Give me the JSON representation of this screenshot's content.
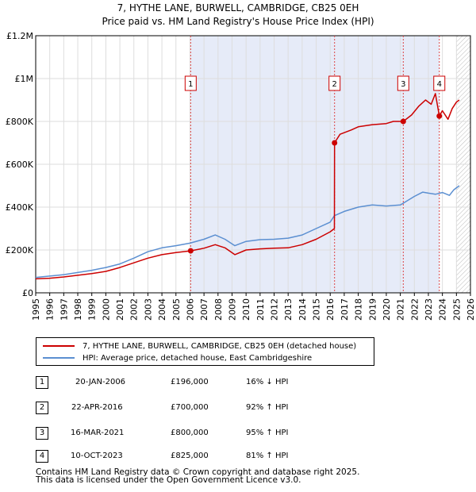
{
  "header": {
    "title": "7, HYTHE LANE, BURWELL, CAMBRIDGE, CB25 0EH",
    "subtitle": "Price paid vs. HM Land Registry's House Price Index (HPI)"
  },
  "chart_data": {
    "type": "line",
    "title": "7, HYTHE LANE, BURWELL, CAMBRIDGE, CB25 0EH",
    "subtitle": "Price paid vs. HM Land Registry's House Price Index (HPI)",
    "xlabel": "",
    "ylabel": "",
    "xlim": [
      1995,
      2026
    ],
    "ylim": [
      0,
      1200000
    ],
    "y_ticks": [
      {
        "value": 0,
        "label": "£0"
      },
      {
        "value": 200000,
        "label": "£200K"
      },
      {
        "value": 400000,
        "label": "£400K"
      },
      {
        "value": 600000,
        "label": "£600K"
      },
      {
        "value": 800000,
        "label": "£800K"
      },
      {
        "value": 1000000,
        "label": "£1M"
      },
      {
        "value": 1200000,
        "label": "£1.2M"
      }
    ],
    "x_ticks": [
      "1995",
      "1996",
      "1997",
      "1998",
      "1999",
      "2000",
      "2001",
      "2002",
      "2003",
      "2004",
      "2005",
      "2006",
      "2007",
      "2008",
      "2009",
      "2010",
      "2011",
      "2012",
      "2013",
      "2014",
      "2015",
      "2016",
      "2017",
      "2018",
      "2019",
      "2020",
      "2021",
      "2022",
      "2023",
      "2024",
      "2025",
      "2026"
    ],
    "shaded_span": [
      2006.05,
      2023.78
    ],
    "hatched_from": 2025.0,
    "grid": true,
    "series": [
      {
        "name": "7, HYTHE LANE, BURWELL, CAMBRIDGE, CB25 0EH (detached house)",
        "color": "#cc0000",
        "x": [
          1995.0,
          1996.0,
          1997.0,
          1998.0,
          1999.0,
          2000.0,
          2001.0,
          2002.0,
          2003.0,
          2004.0,
          2005.0,
          2006.05,
          2007.0,
          2007.8,
          2008.5,
          2009.2,
          2010.0,
          2011.0,
          2012.0,
          2013.0,
          2014.0,
          2015.0,
          2016.0,
          2016.3,
          2016.31,
          2016.7,
          2017.5,
          2018.0,
          2019.0,
          2020.0,
          2020.5,
          2021.21,
          2021.8,
          2022.3,
          2022.8,
          2023.2,
          2023.5,
          2023.78,
          2024.0,
          2024.4,
          2024.7,
          2025.0,
          2025.2
        ],
        "values": [
          65000,
          68000,
          74000,
          82000,
          90000,
          100000,
          118000,
          140000,
          162000,
          178000,
          188000,
          196000,
          208000,
          225000,
          210000,
          178000,
          200000,
          205000,
          208000,
          210000,
          225000,
          250000,
          285000,
          300000,
          700000,
          740000,
          760000,
          775000,
          785000,
          790000,
          800000,
          800000,
          830000,
          870000,
          900000,
          880000,
          930000,
          825000,
          850000,
          810000,
          860000,
          890000,
          900000
        ]
      },
      {
        "name": "HPI: Average price, detached house, East Cambridgeshire",
        "color": "#5b8fd1",
        "x": [
          1995.0,
          1996.0,
          1997.0,
          1998.0,
          1999.0,
          2000.0,
          2001.0,
          2002.0,
          2003.0,
          2004.0,
          2005.0,
          2006.0,
          2007.0,
          2007.8,
          2008.5,
          2009.2,
          2010.0,
          2011.0,
          2012.0,
          2013.0,
          2014.0,
          2015.0,
          2016.0,
          2016.3,
          2017.0,
          2018.0,
          2019.0,
          2020.0,
          2021.0,
          2021.5,
          2022.0,
          2022.6,
          2023.0,
          2023.5,
          2024.0,
          2024.5,
          2024.8,
          2025.2
        ],
        "values": [
          72000,
          78000,
          85000,
          95000,
          105000,
          118000,
          135000,
          162000,
          192000,
          210000,
          220000,
          232000,
          250000,
          270000,
          250000,
          220000,
          240000,
          248000,
          250000,
          255000,
          270000,
          300000,
          330000,
          360000,
          380000,
          400000,
          410000,
          405000,
          410000,
          430000,
          450000,
          470000,
          465000,
          460000,
          468000,
          455000,
          480000,
          500000
        ]
      }
    ],
    "sales": [
      {
        "label": "1",
        "x": 2006.05,
        "value": 196000
      },
      {
        "label": "2",
        "x": 2016.31,
        "value": 700000
      },
      {
        "label": "3",
        "x": 2021.21,
        "value": 800000
      },
      {
        "label": "4",
        "x": 2023.78,
        "value": 825000
      }
    ]
  },
  "legend": {
    "items": [
      {
        "label": "7, HYTHE LANE, BURWELL, CAMBRIDGE, CB25 0EH (detached house)",
        "color": "#cc0000"
      },
      {
        "label": "HPI: Average price, detached house, East Cambridgeshire",
        "color": "#5b8fd1"
      }
    ]
  },
  "transactions": [
    {
      "num": "1",
      "date": "20-JAN-2006",
      "price": "£196,000",
      "hpi": "16% ↓ HPI"
    },
    {
      "num": "2",
      "date": "22-APR-2016",
      "price": "£700,000",
      "hpi": "92% ↑ HPI"
    },
    {
      "num": "3",
      "date": "16-MAR-2021",
      "price": "£800,000",
      "hpi": "95% ↑ HPI"
    },
    {
      "num": "4",
      "date": "10-OCT-2023",
      "price": "£825,000",
      "hpi": "81% ↑ HPI"
    }
  ],
  "footer": {
    "line1": "Contains HM Land Registry data © Crown copyright and database right 2025.",
    "line2": "This data is licensed under the Open Government Licence v3.0."
  }
}
